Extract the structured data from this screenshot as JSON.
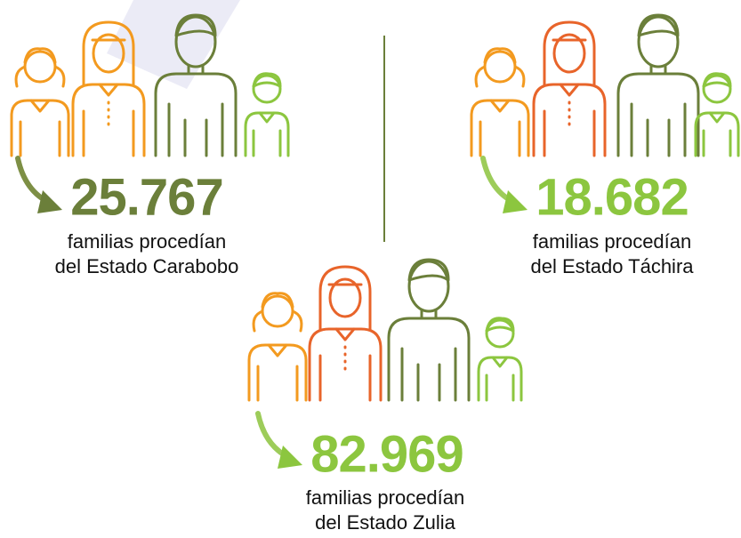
{
  "figures": [
    {
      "number": "25.767",
      "lines": [
        "familias procedían",
        "del Estado Carabobo"
      ]
    },
    {
      "number": "18.682",
      "lines": [
        "familias procedían",
        "del Estado Táchira"
      ]
    },
    {
      "number": "82.969",
      "lines": [
        "familias procedían",
        "del Estado Zulia"
      ]
    }
  ]
}
